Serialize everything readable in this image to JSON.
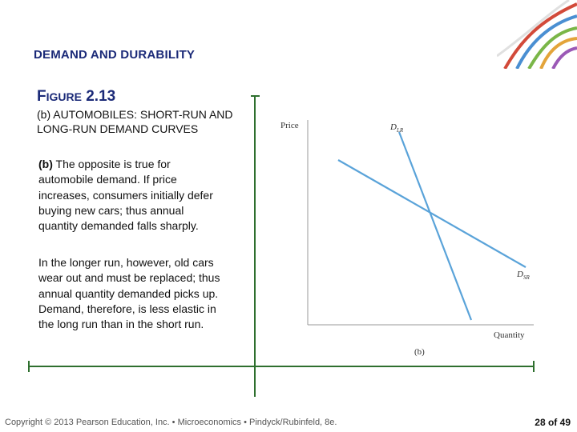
{
  "header": {
    "section_title": "DEMAND AND DURABILITY"
  },
  "figure": {
    "label_prefix": "F",
    "label_rest": "IGURE",
    "label_number": "2.13",
    "subtitle": "(b) AUTOMOBILES: SHORT-RUN AND LONG-RUN DEMAND CURVES",
    "para1_lead": "(b)",
    "para1_body": " The opposite is true for automobile demand. If price increases, consumers initially defer buying new cars; thus annual quantity demanded falls sharply.",
    "para2": "In the longer run, however, old cars wear out and must be replaced; thus annual quantity demanded picks up. Demand, therefore, is less elastic in the long run than in the short run."
  },
  "chart": {
    "y_axis_label": "Price",
    "x_axis_label": "Quantity",
    "panel_label": "(b)",
    "curve_lr_main": "D",
    "curve_lr_sub": "LR",
    "curve_sr_main": "D",
    "curve_sr_sub": "SR",
    "curve_color": "#5aa3d9"
  },
  "footer": {
    "copyright": "Copyright © 2013 Pearson Education, Inc. • Microeconomics • Pindyck/Rubinfeld, 8e.",
    "page": "28 of 49"
  },
  "colors": {
    "title_blue": "#1b2a78",
    "frame_green": "#2e6f2e"
  }
}
